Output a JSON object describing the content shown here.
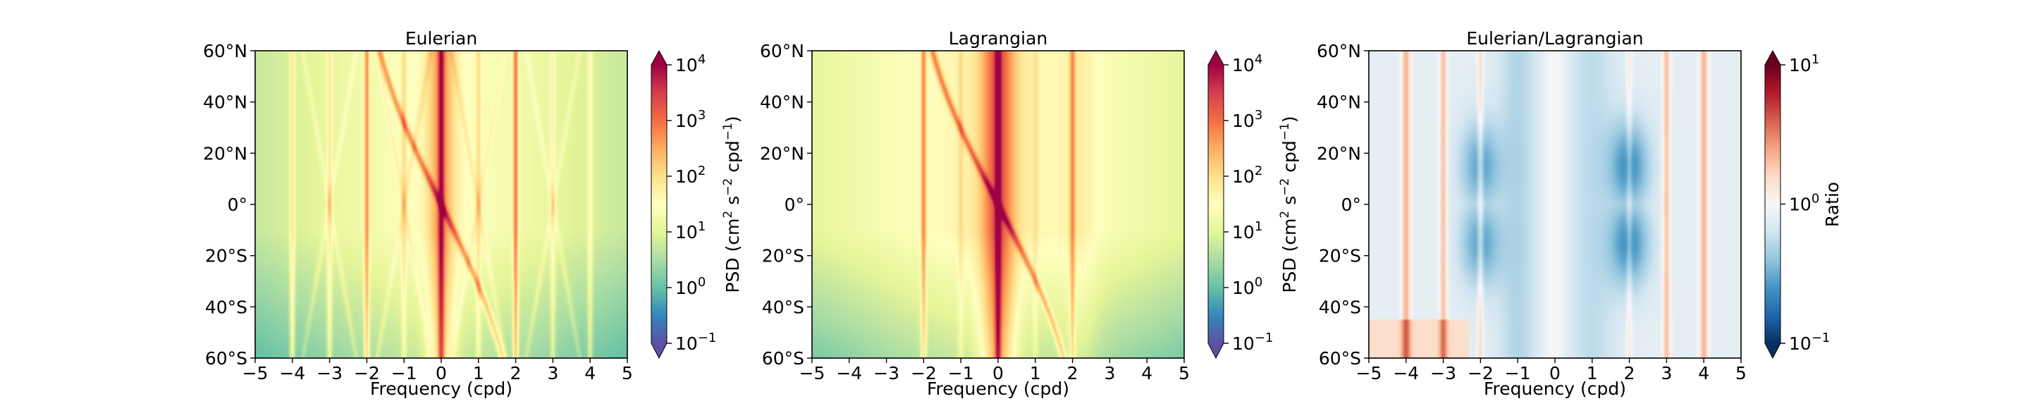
{
  "colors": {
    "spectral_r": [
      "#5e4fa2",
      "#3288bd",
      "#66c2a5",
      "#abdda4",
      "#e6f598",
      "#ffffbf",
      "#fee08b",
      "#fdae61",
      "#f46d43",
      "#d53e4f",
      "#9e0142"
    ],
    "rdbu_r": [
      "#053061",
      "#2166ac",
      "#4393c3",
      "#92c5de",
      "#d1e5f0",
      "#f7f7f7",
      "#fddbc7",
      "#f4a582",
      "#d6604d",
      "#b2182b",
      "#67001f"
    ]
  },
  "chart_data": [
    {
      "type": "heatmap",
      "title": "Eulerian",
      "xlabel": "Frequency (cpd)",
      "ylabel": "",
      "xlim": [
        -5,
        5
      ],
      "ylim": [
        -60,
        60
      ],
      "x_ticks": [
        -5,
        -4,
        -3,
        -2,
        -1,
        0,
        1,
        2,
        3,
        4,
        5
      ],
      "x_tick_labels": [
        "−5",
        "−4",
        "−3",
        "−2",
        "−1",
        "0",
        "1",
        "2",
        "3",
        "4",
        "5"
      ],
      "y_ticks": [
        60,
        40,
        20,
        0,
        -20,
        -40,
        -60
      ],
      "y_tick_labels": [
        "60°N",
        "40°N",
        "20°N",
        "0°",
        "20°S",
        "40°S",
        "60°S"
      ],
      "colorbar": {
        "label": "PSD (cm² s⁻² cpd⁻¹)",
        "label_parts": [
          "PSD (cm",
          "2",
          " s",
          "−2",
          " cpd",
          "−1",
          ")"
        ],
        "scale": "log",
        "range": [
          0.1,
          10000
        ],
        "extend": "both",
        "colormap": "spectral_r",
        "tick_labels": [
          {
            "value": 10000,
            "base": "10",
            "exp": "4"
          },
          {
            "value": 1000,
            "base": "10",
            "exp": "3"
          },
          {
            "value": 100,
            "base": "10",
            "exp": "2"
          },
          {
            "value": 10,
            "base": "10",
            "exp": "1"
          },
          {
            "value": 1,
            "base": "10",
            "exp": "0"
          },
          {
            "value": 0.1,
            "base": "10",
            "exp": "−1"
          }
        ]
      }
    },
    {
      "type": "heatmap",
      "title": "Lagrangian",
      "xlabel": "Frequency (cpd)",
      "ylabel": "",
      "xlim": [
        -5,
        5
      ],
      "ylim": [
        -60,
        60
      ],
      "x_ticks": [
        -5,
        -4,
        -3,
        -2,
        -1,
        0,
        1,
        2,
        3,
        4,
        5
      ],
      "x_tick_labels": [
        "−5",
        "−4",
        "−3",
        "−2",
        "−1",
        "0",
        "1",
        "2",
        "3",
        "4",
        "5"
      ],
      "y_ticks": [
        60,
        40,
        20,
        0,
        -20,
        -40,
        -60
      ],
      "y_tick_labels": [
        "60°N",
        "40°N",
        "20°N",
        "0°",
        "20°S",
        "40°S",
        "60°S"
      ],
      "colorbar": {
        "label": "PSD (cm² s⁻² cpd⁻¹)",
        "label_parts": [
          "PSD (cm",
          "2",
          " s",
          "−2",
          " cpd",
          "−1",
          ")"
        ],
        "scale": "log",
        "range": [
          0.1,
          10000
        ],
        "extend": "both",
        "colormap": "spectral_r",
        "tick_labels": [
          {
            "value": 10000,
            "base": "10",
            "exp": "4"
          },
          {
            "value": 1000,
            "base": "10",
            "exp": "3"
          },
          {
            "value": 100,
            "base": "10",
            "exp": "2"
          },
          {
            "value": 10,
            "base": "10",
            "exp": "1"
          },
          {
            "value": 1,
            "base": "10",
            "exp": "0"
          },
          {
            "value": 0.1,
            "base": "10",
            "exp": "−1"
          }
        ]
      }
    },
    {
      "type": "heatmap",
      "title": "Eulerian/Lagrangian",
      "xlabel": "Frequency (cpd)",
      "ylabel": "",
      "xlim": [
        -5,
        5
      ],
      "ylim": [
        -60,
        60
      ],
      "x_ticks": [
        -5,
        -4,
        -3,
        -2,
        -1,
        0,
        1,
        2,
        3,
        4,
        5
      ],
      "x_tick_labels": [
        "−5",
        "−4",
        "−3",
        "−2",
        "−1",
        "0",
        "1",
        "2",
        "3",
        "4",
        "5"
      ],
      "y_ticks": [
        60,
        40,
        20,
        0,
        -20,
        -40,
        -60
      ],
      "y_tick_labels": [
        "60°N",
        "40°N",
        "20°N",
        "0°",
        "20°S",
        "40°S",
        "60°S"
      ],
      "colorbar": {
        "label": "Ratio",
        "label_parts": [
          "Ratio"
        ],
        "scale": "log",
        "range": [
          0.1,
          10
        ],
        "extend": "both",
        "colormap": "rdbu_r",
        "tick_labels": [
          {
            "value": 10,
            "base": "10",
            "exp": "1"
          },
          {
            "value": 1,
            "base": "10",
            "exp": "0"
          },
          {
            "value": 0.1,
            "base": "10",
            "exp": "−1"
          }
        ]
      }
    }
  ]
}
